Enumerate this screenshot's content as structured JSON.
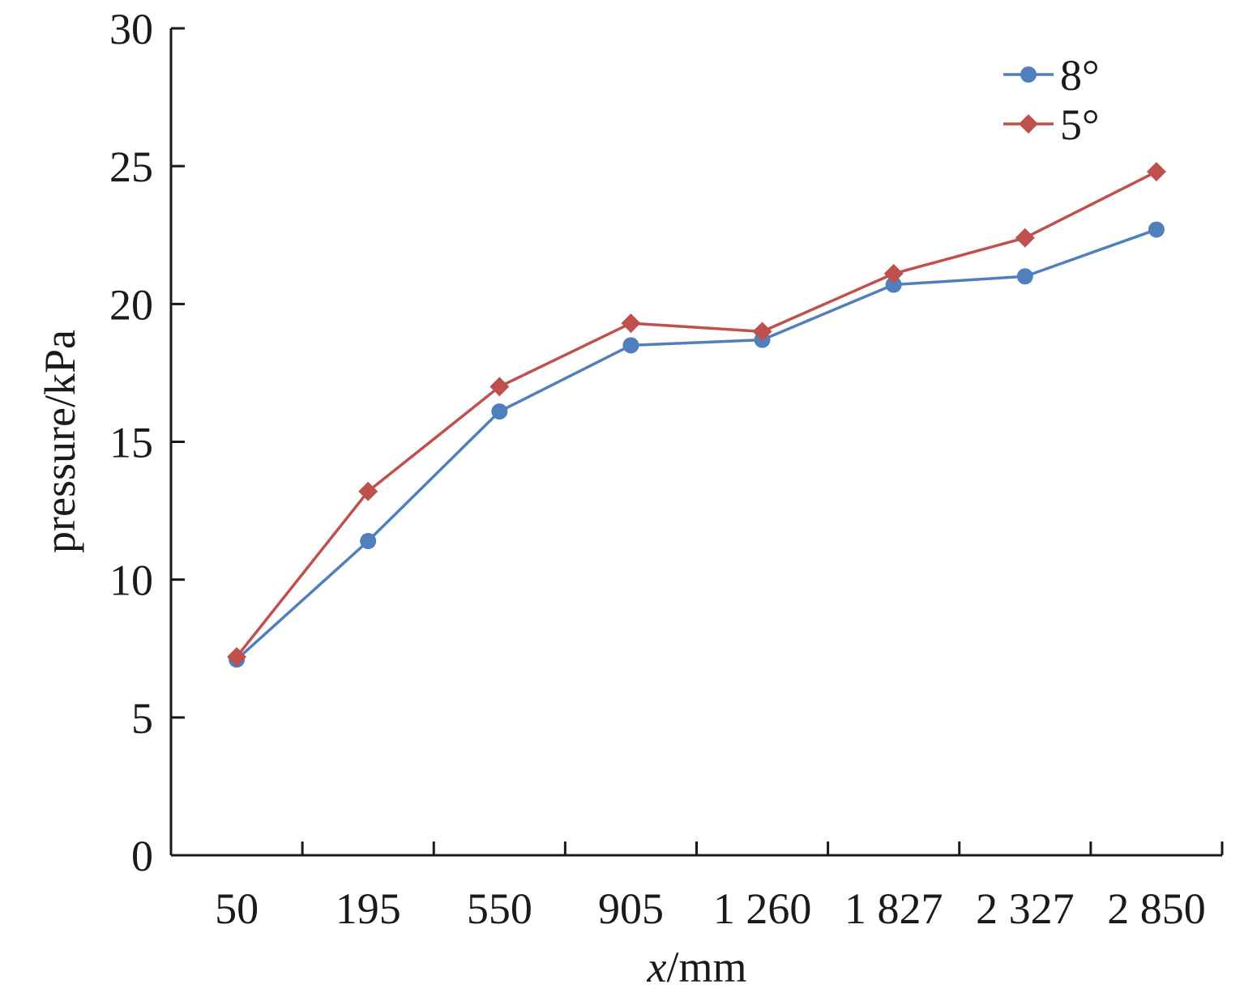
{
  "chart_data": {
    "type": "line",
    "categories": [
      "50",
      "195",
      "550",
      "905",
      "1 260",
      "1 827",
      "2 327",
      "2 850"
    ],
    "series": [
      {
        "name": "8°",
        "color": "#4F7FBC",
        "marker": "circle",
        "values": [
          7.1,
          11.4,
          16.1,
          18.5,
          18.7,
          20.7,
          21.0,
          22.7
        ]
      },
      {
        "name": "5°",
        "color": "#C0504D",
        "marker": "diamond",
        "values": [
          7.2,
          13.2,
          17.0,
          19.3,
          19.0,
          21.1,
          22.4,
          24.8
        ]
      }
    ],
    "xlabel_italic": "x",
    "xlabel_unit": "/mm",
    "ylabel": "pressure/kPa",
    "ylim": [
      0,
      30
    ],
    "yticks": [
      "0",
      "5",
      "10",
      "15",
      "20",
      "25",
      "30"
    ],
    "legend_position": "top-right",
    "grid": false
  }
}
